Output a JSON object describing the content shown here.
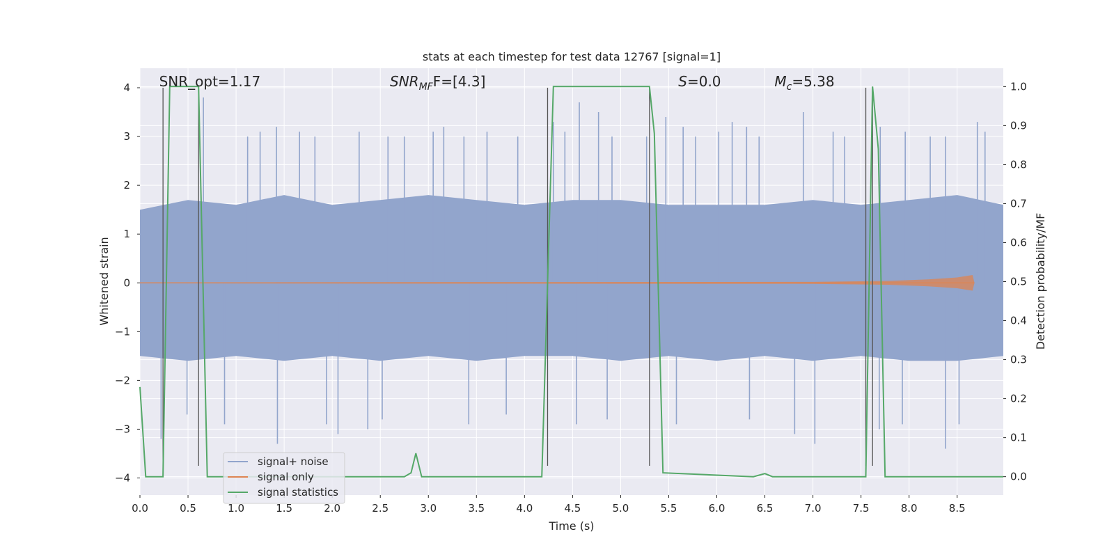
{
  "chart_data": {
    "type": "line",
    "title": "stats at each timestep for test data 12767 [signal=1]",
    "xlabel": "Time (s)",
    "ylabel": "Whitened strain",
    "y2label": "Detection probability/MF",
    "xlim": [
      0.0,
      8.98
    ],
    "ylim": [
      -4.35,
      4.4
    ],
    "y2lim": [
      -0.047,
      1.047
    ],
    "xticks": [
      0.0,
      0.5,
      1.0,
      1.5,
      2.0,
      2.5,
      3.0,
      3.5,
      4.0,
      4.5,
      5.0,
      5.5,
      6.0,
      6.5,
      7.0,
      7.5,
      8.0,
      8.5
    ],
    "xtick_labels": [
      "0.0",
      "0.5",
      "1.0",
      "1.5",
      "2.0",
      "2.5",
      "3.0",
      "3.5",
      "4.0",
      "4.5",
      "5.0",
      "5.5",
      "6.0",
      "6.5",
      "7.0",
      "7.5",
      "8.0",
      "8.5"
    ],
    "yticks": [
      4,
      3,
      2,
      1,
      0,
      -1,
      -2,
      -3,
      -4
    ],
    "ytick_labels": [
      "4",
      "3",
      "2",
      "1",
      "0",
      "−1",
      "−2",
      "−3",
      "−4"
    ],
    "y2ticks": [
      1.0,
      0.9,
      0.8,
      0.7,
      0.6,
      0.5,
      0.4,
      0.3,
      0.2,
      0.1,
      0.0
    ],
    "y2tick_labels": [
      "1.0",
      "0.9",
      "0.8",
      "0.7",
      "0.6",
      "0.5",
      "0.4",
      "0.3",
      "0.2",
      "0.1",
      "0.0"
    ],
    "annotations": [
      {
        "id": "snr-opt",
        "text": "SNR_opt=1.17",
        "x": 0.2
      },
      {
        "id": "snr-mf",
        "text": "SNR",
        "sub": "MF",
        "rest": "F=[4.3]",
        "x": 2.6
      },
      {
        "id": "s",
        "text": "S",
        "sub": "",
        "rest": "=0.0",
        "x": 5.6
      },
      {
        "id": "mc",
        "text": "M",
        "sub": "c",
        "rest": "=5.38",
        "x": 6.6
      }
    ],
    "vertical_lines": [
      {
        "x": 0.24,
        "y_from": -3.75,
        "y_to": 4.0
      },
      {
        "x": 0.61,
        "y_from": -3.75,
        "y_to": 4.0
      },
      {
        "x": 4.24,
        "y_from": -3.75,
        "y_to": 4.0
      },
      {
        "x": 5.3,
        "y_from": -3.75,
        "y_to": 4.0
      },
      {
        "x": 7.55,
        "y_from": -3.75,
        "y_to": 4.0
      },
      {
        "x": 7.62,
        "y_from": -3.75,
        "y_to": 4.0
      }
    ],
    "series": [
      {
        "name": "signal+ noise",
        "color": "#92a5cc",
        "envelope": {
          "x": [
            0.0,
            0.5,
            1.0,
            1.5,
            2.0,
            2.5,
            3.0,
            3.5,
            4.0,
            4.5,
            5.0,
            5.5,
            6.0,
            6.5,
            7.0,
            7.5,
            8.0,
            8.5,
            8.98
          ],
          "upper": [
            1.5,
            1.7,
            1.6,
            1.8,
            1.6,
            1.7,
            1.8,
            1.7,
            1.6,
            1.7,
            1.7,
            1.6,
            1.6,
            1.6,
            1.7,
            1.6,
            1.7,
            1.8,
            1.6
          ],
          "lower": [
            -1.5,
            -1.6,
            -1.5,
            -1.6,
            -1.5,
            -1.6,
            -1.5,
            -1.6,
            -1.5,
            -1.5,
            -1.6,
            -1.5,
            -1.6,
            -1.5,
            -1.6,
            -1.5,
            -1.6,
            -1.6,
            -1.5
          ]
        },
        "spikes": [
          {
            "x": 0.66,
            "y": 3.8
          },
          {
            "x": 1.12,
            "y": 3.0
          },
          {
            "x": 1.25,
            "y": 3.1
          },
          {
            "x": 1.42,
            "y": 3.2
          },
          {
            "x": 1.66,
            "y": 3.1
          },
          {
            "x": 1.82,
            "y": 3.0
          },
          {
            "x": 2.28,
            "y": 3.1
          },
          {
            "x": 2.58,
            "y": 3.0
          },
          {
            "x": 2.75,
            "y": 3.0
          },
          {
            "x": 3.05,
            "y": 3.1
          },
          {
            "x": 3.16,
            "y": 3.2
          },
          {
            "x": 3.37,
            "y": 3.0
          },
          {
            "x": 3.61,
            "y": 3.1
          },
          {
            "x": 3.93,
            "y": 3.0
          },
          {
            "x": 4.3,
            "y": 3.3
          },
          {
            "x": 4.42,
            "y": 3.1
          },
          {
            "x": 4.57,
            "y": 3.7
          },
          {
            "x": 4.77,
            "y": 3.5
          },
          {
            "x": 4.91,
            "y": 3.0
          },
          {
            "x": 5.27,
            "y": 3.0
          },
          {
            "x": 5.47,
            "y": 3.4
          },
          {
            "x": 5.65,
            "y": 3.2
          },
          {
            "x": 5.78,
            "y": 3.0
          },
          {
            "x": 6.02,
            "y": 3.1
          },
          {
            "x": 6.16,
            "y": 3.3
          },
          {
            "x": 6.31,
            "y": 3.2
          },
          {
            "x": 6.44,
            "y": 3.0
          },
          {
            "x": 6.9,
            "y": 3.5
          },
          {
            "x": 7.21,
            "y": 3.1
          },
          {
            "x": 7.33,
            "y": 3.0
          },
          {
            "x": 7.7,
            "y": 3.2
          },
          {
            "x": 7.96,
            "y": 3.1
          },
          {
            "x": 8.22,
            "y": 3.0
          },
          {
            "x": 8.38,
            "y": 3.0
          },
          {
            "x": 8.71,
            "y": 3.3
          },
          {
            "x": 8.79,
            "y": 3.1
          },
          {
            "x": 0.22,
            "y": -3.2
          },
          {
            "x": 0.49,
            "y": -2.7
          },
          {
            "x": 0.88,
            "y": -2.9
          },
          {
            "x": 1.43,
            "y": -3.3
          },
          {
            "x": 1.94,
            "y": -2.9
          },
          {
            "x": 2.06,
            "y": -3.1
          },
          {
            "x": 2.37,
            "y": -3.0
          },
          {
            "x": 2.52,
            "y": -2.8
          },
          {
            "x": 3.42,
            "y": -2.9
          },
          {
            "x": 3.81,
            "y": -2.7
          },
          {
            "x": 4.54,
            "y": -2.9
          },
          {
            "x": 4.86,
            "y": -2.8
          },
          {
            "x": 5.58,
            "y": -2.9
          },
          {
            "x": 6.34,
            "y": -2.8
          },
          {
            "x": 6.81,
            "y": -3.1
          },
          {
            "x": 7.02,
            "y": -3.3
          },
          {
            "x": 7.69,
            "y": -3.0
          },
          {
            "x": 7.93,
            "y": -2.9
          },
          {
            "x": 8.38,
            "y": -3.4
          },
          {
            "x": 8.52,
            "y": -2.9
          }
        ]
      },
      {
        "name": "signal only",
        "color": "#dd8452",
        "x": [
          0.0,
          7.0,
          7.8,
          8.2,
          8.5,
          8.66,
          8.68
        ],
        "y_upper": [
          0.01,
          0.02,
          0.04,
          0.07,
          0.11,
          0.16,
          0.0
        ],
        "y_lower": [
          -0.01,
          -0.02,
          -0.04,
          -0.07,
          -0.11,
          -0.16,
          0.0
        ]
      },
      {
        "name": "signal statistics",
        "color": "#55a868",
        "axis": "right",
        "x": [
          0.0,
          0.06,
          0.24,
          0.31,
          0.61,
          0.7,
          2.75,
          2.82,
          2.87,
          2.93,
          4.18,
          4.3,
          5.3,
          5.35,
          5.44,
          6.38,
          6.5,
          6.58,
          7.55,
          7.62,
          7.68,
          7.75,
          8.98
        ],
        "y": [
          0.23,
          0.0,
          0.0,
          1.0,
          1.0,
          0.0,
          0.0,
          0.01,
          0.06,
          0.0,
          0.0,
          1.0,
          1.0,
          0.88,
          0.01,
          0.0,
          0.008,
          0.0,
          0.0,
          1.0,
          0.84,
          0.0,
          0.0
        ]
      }
    ],
    "legend": {
      "position": "lower-left",
      "entries": [
        "signal+ noise",
        "signal only",
        "signal statistics"
      ]
    }
  }
}
